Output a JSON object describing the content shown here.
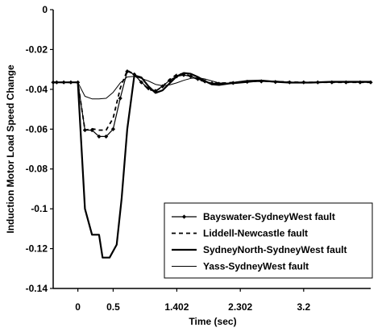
{
  "chart_data": {
    "type": "line",
    "title": "",
    "xlabel": "Time (sec)",
    "ylabel": "Induction Motor Load Speed Change",
    "xlim": [
      -0.35,
      4.15
    ],
    "ylim": [
      -0.14,
      0
    ],
    "x_ticks": [
      {
        "value": 0,
        "label": "0"
      },
      {
        "value": 0.5,
        "label": "0.5"
      },
      {
        "value": 1.402,
        "label": "1.402"
      },
      {
        "value": 2.302,
        "label": "2.302"
      },
      {
        "value": 3.2,
        "label": "3.2"
      }
    ],
    "y_ticks": [
      {
        "value": 0,
        "label": "0"
      },
      {
        "value": -0.02,
        "label": "-0.02"
      },
      {
        "value": -0.04,
        "label": "-0.04"
      },
      {
        "value": -0.06,
        "label": "-0.06"
      },
      {
        "value": -0.08,
        "label": "-0.08"
      },
      {
        "value": -0.1,
        "label": "-0.1"
      },
      {
        "value": -0.12,
        "label": "-0.12"
      },
      {
        "value": -0.14,
        "label": "-0.14"
      }
    ],
    "grid": false,
    "legend_position": "bottom-right",
    "series": [
      {
        "name": "Bayswater-SydneyWest fault",
        "style": "solid-diamond",
        "color": "#000000",
        "points": [
          [
            -0.35,
            -0.0365
          ],
          [
            -0.3,
            -0.0365
          ],
          [
            -0.2,
            -0.0365
          ],
          [
            -0.1,
            -0.0365
          ],
          [
            0,
            -0.0365
          ],
          [
            0.1,
            -0.0605
          ],
          [
            0.2,
            -0.0605
          ],
          [
            0.3,
            -0.0637
          ],
          [
            0.4,
            -0.0637
          ],
          [
            0.5,
            -0.06
          ],
          [
            0.6,
            -0.0445
          ],
          [
            0.7,
            -0.031
          ],
          [
            0.8,
            -0.0325
          ],
          [
            0.9,
            -0.0365
          ],
          [
            1.0,
            -0.0395
          ],
          [
            1.1,
            -0.0408
          ],
          [
            1.2,
            -0.0385
          ],
          [
            1.3,
            -0.0355
          ],
          [
            1.4,
            -0.0335
          ],
          [
            1.5,
            -0.0328
          ],
          [
            1.6,
            -0.0335
          ],
          [
            1.7,
            -0.0348
          ],
          [
            1.8,
            -0.036
          ],
          [
            1.9,
            -0.037
          ],
          [
            2.0,
            -0.0372
          ],
          [
            2.2,
            -0.0368
          ],
          [
            2.4,
            -0.0362
          ],
          [
            2.6,
            -0.036
          ],
          [
            2.8,
            -0.0363
          ],
          [
            3.0,
            -0.0365
          ],
          [
            3.2,
            -0.0365
          ],
          [
            3.4,
            -0.0365
          ],
          [
            3.6,
            -0.0365
          ],
          [
            3.8,
            -0.0365
          ],
          [
            4.0,
            -0.0365
          ],
          [
            4.15,
            -0.0365
          ]
        ]
      },
      {
        "name": "Liddell-Newcastle fault",
        "style": "dashed",
        "color": "#000000",
        "points": [
          [
            -0.35,
            -0.0365
          ],
          [
            0,
            -0.0365
          ],
          [
            0.1,
            -0.0605
          ],
          [
            0.2,
            -0.0598
          ],
          [
            0.3,
            -0.0605
          ],
          [
            0.4,
            -0.0605
          ],
          [
            0.5,
            -0.0545
          ],
          [
            0.6,
            -0.0395
          ],
          [
            0.7,
            -0.0305
          ],
          [
            0.8,
            -0.0325
          ],
          [
            0.9,
            -0.0365
          ],
          [
            1.0,
            -0.04
          ],
          [
            1.1,
            -0.041
          ],
          [
            1.2,
            -0.0385
          ],
          [
            1.3,
            -0.0352
          ],
          [
            1.4,
            -0.0325
          ],
          [
            1.5,
            -0.0322
          ],
          [
            1.6,
            -0.0335
          ],
          [
            1.7,
            -0.035
          ],
          [
            1.8,
            -0.0362
          ],
          [
            1.9,
            -0.037
          ],
          [
            2.1,
            -0.0368
          ],
          [
            2.3,
            -0.0363
          ],
          [
            2.6,
            -0.0358
          ],
          [
            2.9,
            -0.0362
          ],
          [
            3.2,
            -0.0365
          ],
          [
            3.6,
            -0.0365
          ],
          [
            4.15,
            -0.0365
          ]
        ]
      },
      {
        "name": "SydneyNorth-SydneyWest fault",
        "style": "solid-thick",
        "color": "#000000",
        "points": [
          [
            -0.35,
            -0.0365
          ],
          [
            0,
            -0.0365
          ],
          [
            0.1,
            -0.1
          ],
          [
            0.2,
            -0.113
          ],
          [
            0.3,
            -0.113
          ],
          [
            0.35,
            -0.1245
          ],
          [
            0.45,
            -0.1245
          ],
          [
            0.55,
            -0.118
          ],
          [
            0.62,
            -0.095
          ],
          [
            0.7,
            -0.06
          ],
          [
            0.8,
            -0.033
          ],
          [
            0.9,
            -0.034
          ],
          [
            1.0,
            -0.0385
          ],
          [
            1.1,
            -0.0418
          ],
          [
            1.2,
            -0.0405
          ],
          [
            1.3,
            -0.037
          ],
          [
            1.4,
            -0.0335
          ],
          [
            1.5,
            -0.0318
          ],
          [
            1.6,
            -0.0322
          ],
          [
            1.7,
            -0.0338
          ],
          [
            1.8,
            -0.0358
          ],
          [
            1.9,
            -0.0375
          ],
          [
            2.0,
            -0.0378
          ],
          [
            2.2,
            -0.0368
          ],
          [
            2.4,
            -0.0358
          ],
          [
            2.6,
            -0.0356
          ],
          [
            2.8,
            -0.0362
          ],
          [
            3.0,
            -0.0366
          ],
          [
            3.3,
            -0.0366
          ],
          [
            3.6,
            -0.0362
          ],
          [
            3.9,
            -0.0362
          ],
          [
            4.15,
            -0.0362
          ]
        ]
      },
      {
        "name": "Yass-SydneyWest fault",
        "style": "solid-thin",
        "color": "#000000",
        "points": [
          [
            -0.35,
            -0.0365
          ],
          [
            0,
            -0.0365
          ],
          [
            0.1,
            -0.0435
          ],
          [
            0.2,
            -0.0448
          ],
          [
            0.3,
            -0.0448
          ],
          [
            0.4,
            -0.0445
          ],
          [
            0.5,
            -0.0415
          ],
          [
            0.6,
            -0.0368
          ],
          [
            0.7,
            -0.0338
          ],
          [
            0.8,
            -0.0335
          ],
          [
            0.9,
            -0.0345
          ],
          [
            1.0,
            -0.0358
          ],
          [
            1.1,
            -0.0375
          ],
          [
            1.2,
            -0.0382
          ],
          [
            1.3,
            -0.0378
          ],
          [
            1.4,
            -0.0368
          ],
          [
            1.5,
            -0.0355
          ],
          [
            1.6,
            -0.0345
          ],
          [
            1.7,
            -0.0342
          ],
          [
            1.8,
            -0.0348
          ],
          [
            1.9,
            -0.0358
          ],
          [
            2.0,
            -0.0368
          ],
          [
            2.2,
            -0.0372
          ],
          [
            2.4,
            -0.0365
          ],
          [
            2.6,
            -0.0358
          ],
          [
            2.8,
            -0.0358
          ],
          [
            3.0,
            -0.0364
          ],
          [
            3.3,
            -0.0367
          ],
          [
            3.6,
            -0.0364
          ],
          [
            3.9,
            -0.0362
          ],
          [
            4.15,
            -0.0362
          ]
        ]
      }
    ]
  }
}
